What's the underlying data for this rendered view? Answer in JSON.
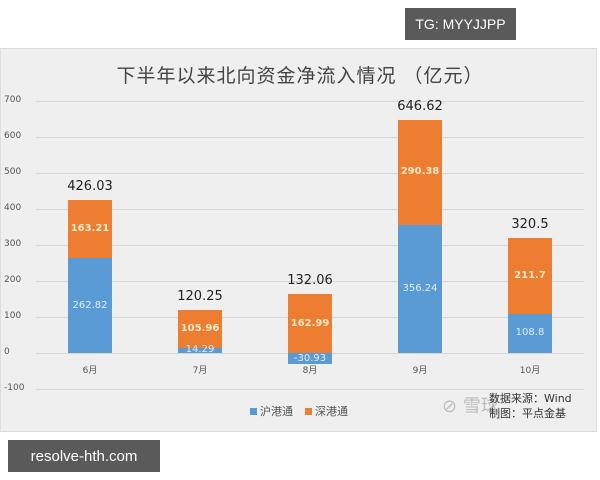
{
  "badges": {
    "top_right": "TG: MYYJJPP",
    "bottom_left": "resolve-hth.com"
  },
  "chart_data": {
    "type": "bar",
    "stacked": true,
    "title": "下半年以来北向资金净流入情况  （亿元）",
    "categories": [
      "6月",
      "7月",
      "8月",
      "9月",
      "10月"
    ],
    "series": [
      {
        "name": "沪港通",
        "color": "#5b9bd5",
        "values": [
          262.82,
          14.29,
          -30.93,
          356.24,
          108.8
        ]
      },
      {
        "name": "深港通",
        "color": "#ed7d31",
        "values": [
          163.21,
          105.96,
          162.99,
          290.38,
          211.7
        ]
      }
    ],
    "totals": [
      426.03,
      120.25,
      132.06,
      646.62,
      320.5
    ],
    "total_labels": [
      "426.03",
      "120.25",
      "132.06",
      "646.62",
      "320.5"
    ],
    "series_labels": {
      "blue": [
        "262.82",
        "14.29",
        "-30.93",
        "356.24",
        "108.8"
      ],
      "orange": [
        "163.21",
        "105.96",
        "162.99",
        "290.38",
        "211.7"
      ]
    },
    "yticks": [
      "700",
      "600",
      "500",
      "400",
      "300",
      "200",
      "100",
      "0",
      "-100"
    ],
    "ylim": [
      -100,
      700
    ],
    "xlabel": "",
    "ylabel": "",
    "grid": true,
    "legend_position": "bottom"
  },
  "source": {
    "line1": "数据来源：Wind",
    "line2": "制图：平点金基"
  },
  "watermark": "雪球"
}
